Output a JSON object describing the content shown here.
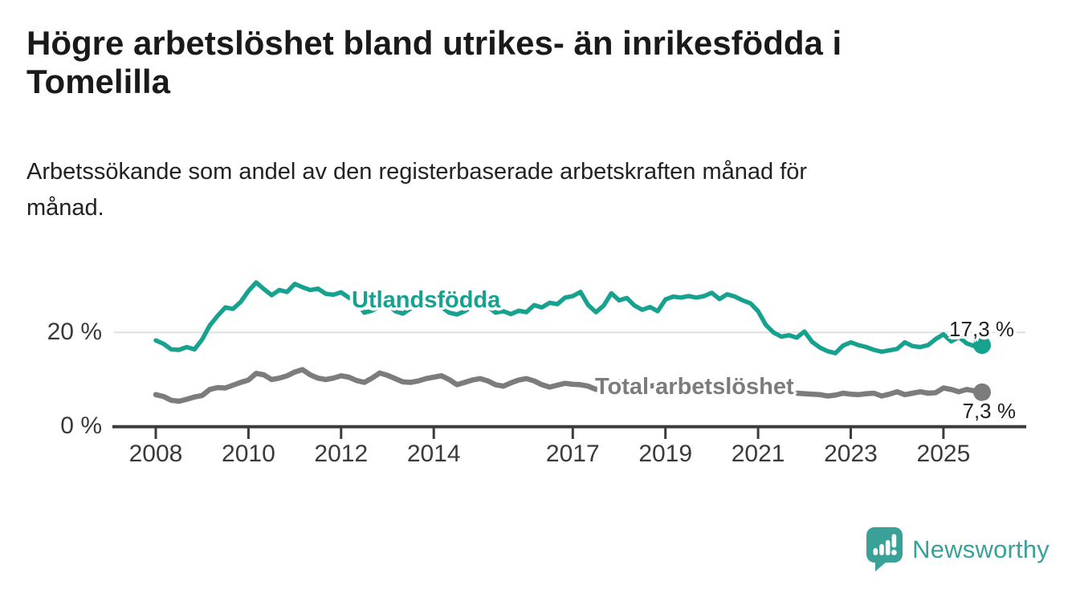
{
  "header": {
    "title": "Högre arbetslöshet bland utrikes- än inrikesfödda i Tomelilla",
    "subtitle": "Arbetssökande som andel av den registerbaserade arbetskraften månad för månad."
  },
  "chart_data": {
    "type": "line",
    "x_axis": {
      "tick_years": [
        2008,
        2010,
        2012,
        2014,
        2017,
        2019,
        2021,
        2023,
        2025
      ],
      "tick_labels": [
        "2008",
        "2010",
        "2012",
        "2014",
        "2017",
        "2019",
        "2021",
        "2023",
        "2025"
      ]
    },
    "y_axis": {
      "ticks": [
        {
          "value": 20,
          "label": "20 %"
        },
        {
          "value": 0,
          "label": "0 %"
        }
      ],
      "unit": "%"
    },
    "xlim": [
      2008,
      2026.1
    ],
    "ylim": [
      0,
      33
    ],
    "grid": "single horizontal gridline at 20 %",
    "legend_position": "inline labels on lines",
    "x_start": 2008.0,
    "x_step": 0.16667,
    "series": [
      {
        "name": "Utlandsfödda",
        "color": "#16a28f",
        "end_value": 17.3,
        "end_label": "17,3 %",
        "values": [
          18.3,
          17.6,
          16.4,
          16.3,
          16.9,
          16.4,
          18.5,
          21.5,
          23.5,
          25.3,
          25.0,
          26.5,
          28.8,
          30.6,
          29.2,
          27.9,
          29.0,
          28.6,
          30.3,
          29.6,
          29.0,
          29.3,
          28.2,
          28.0,
          28.5,
          27.4,
          26.5,
          24.2,
          24.6,
          25.6,
          26.1,
          24.5,
          24.0,
          25.1,
          26.0,
          25.6,
          26.3,
          25.4,
          24.2,
          23.8,
          24.5,
          25.5,
          26.3,
          25.5,
          24.2,
          24.5,
          23.9,
          24.6,
          24.3,
          25.8,
          25.3,
          26.3,
          26.0,
          27.4,
          27.7,
          28.6,
          25.8,
          24.3,
          25.7,
          28.3,
          26.8,
          27.3,
          25.7,
          24.8,
          25.4,
          24.5,
          27.0,
          27.6,
          27.4,
          27.7,
          27.4,
          27.7,
          28.4,
          27.1,
          28.1,
          27.6,
          26.8,
          26.2,
          24.5,
          21.6,
          20.0,
          19.1,
          19.4,
          18.9,
          20.2,
          18.0,
          16.8,
          16.0,
          15.6,
          17.2,
          17.9,
          17.3,
          16.9,
          16.3,
          15.9,
          16.2,
          16.5,
          17.9,
          17.1,
          16.9,
          17.3,
          18.6,
          19.6,
          18.1,
          19.0,
          17.7,
          17.1,
          17.3
        ]
      },
      {
        "name": "Total arbetslöshet",
        "color": "#7c7c7c",
        "end_value": 7.3,
        "end_label": "7,3 %",
        "values": [
          6.8,
          6.4,
          5.6,
          5.4,
          5.8,
          6.3,
          6.6,
          7.9,
          8.3,
          8.2,
          8.8,
          9.4,
          9.9,
          11.3,
          11.0,
          10.0,
          10.3,
          10.8,
          11.6,
          12.1,
          11.0,
          10.3,
          10.0,
          10.3,
          10.8,
          10.5,
          9.8,
          9.4,
          10.3,
          11.4,
          10.9,
          10.2,
          9.5,
          9.4,
          9.7,
          10.2,
          10.5,
          10.8,
          10.0,
          8.9,
          9.4,
          9.9,
          10.2,
          9.7,
          8.9,
          8.6,
          9.3,
          9.9,
          10.2,
          9.7,
          8.9,
          8.4,
          8.8,
          9.2,
          9.0,
          8.9,
          8.6,
          7.9,
          8.4,
          9.3,
          9.5,
          9.1,
          8.7,
          8.4,
          8.6,
          8.8,
          8.9,
          8.7,
          8.5,
          8.4,
          8.6,
          8.8,
          9.0,
          9.3,
          9.1,
          8.8,
          8.5,
          8.2,
          8.0,
          7.7,
          7.5,
          7.3,
          7.2,
          7.1,
          7.0,
          6.9,
          6.8,
          6.5,
          6.7,
          7.1,
          6.9,
          6.8,
          7.0,
          7.1,
          6.5,
          6.9,
          7.4,
          6.8,
          7.1,
          7.4,
          7.1,
          7.2,
          8.2,
          7.9,
          7.4,
          7.9,
          7.6,
          7.3
        ]
      }
    ]
  },
  "style": {
    "grid_color": "#dfdfdf",
    "axis_color": "#3c3c3c",
    "tick_label_color": "#3a3a3a"
  },
  "branding": {
    "name": "Newsworthy",
    "color": "#3aa199",
    "logo_icon": "speech-bubble-bar-chart-icon"
  }
}
